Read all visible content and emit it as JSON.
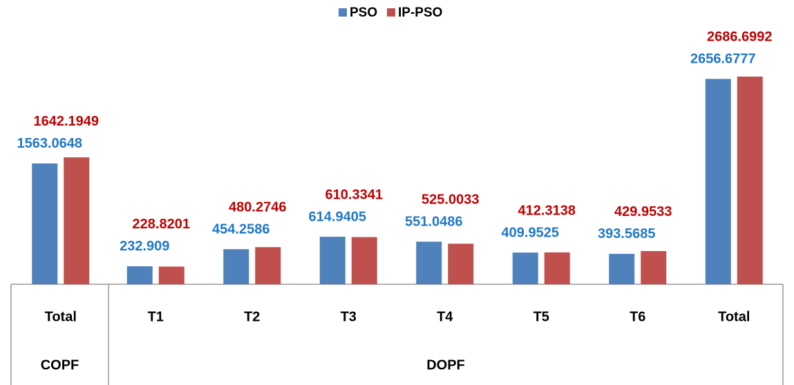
{
  "chart_data": {
    "type": "bar",
    "categories": [
      "Total",
      "T1",
      "T2",
      "T3",
      "T4",
      "T5",
      "T6",
      "Total"
    ],
    "groups": [
      {
        "name": "COPF",
        "count": 1
      },
      {
        "name": "DOPF",
        "count": 7
      }
    ],
    "series": [
      {
        "name": "PSO",
        "color": "#4f81bd",
        "label_color": "#1f78c8",
        "values": [
          1563.0648,
          232.909,
          454.2586,
          614.9405,
          551.0486,
          409.9525,
          393.5685,
          2656.6777
        ]
      },
      {
        "name": "IP-PSO",
        "color": "#c0504d",
        "label_color": "#c00000",
        "values": [
          1642.1949,
          228.8201,
          480.2746,
          610.3341,
          525.0033,
          412.3138,
          429.9533,
          2686.6992
        ]
      }
    ],
    "legend": "top"
  }
}
